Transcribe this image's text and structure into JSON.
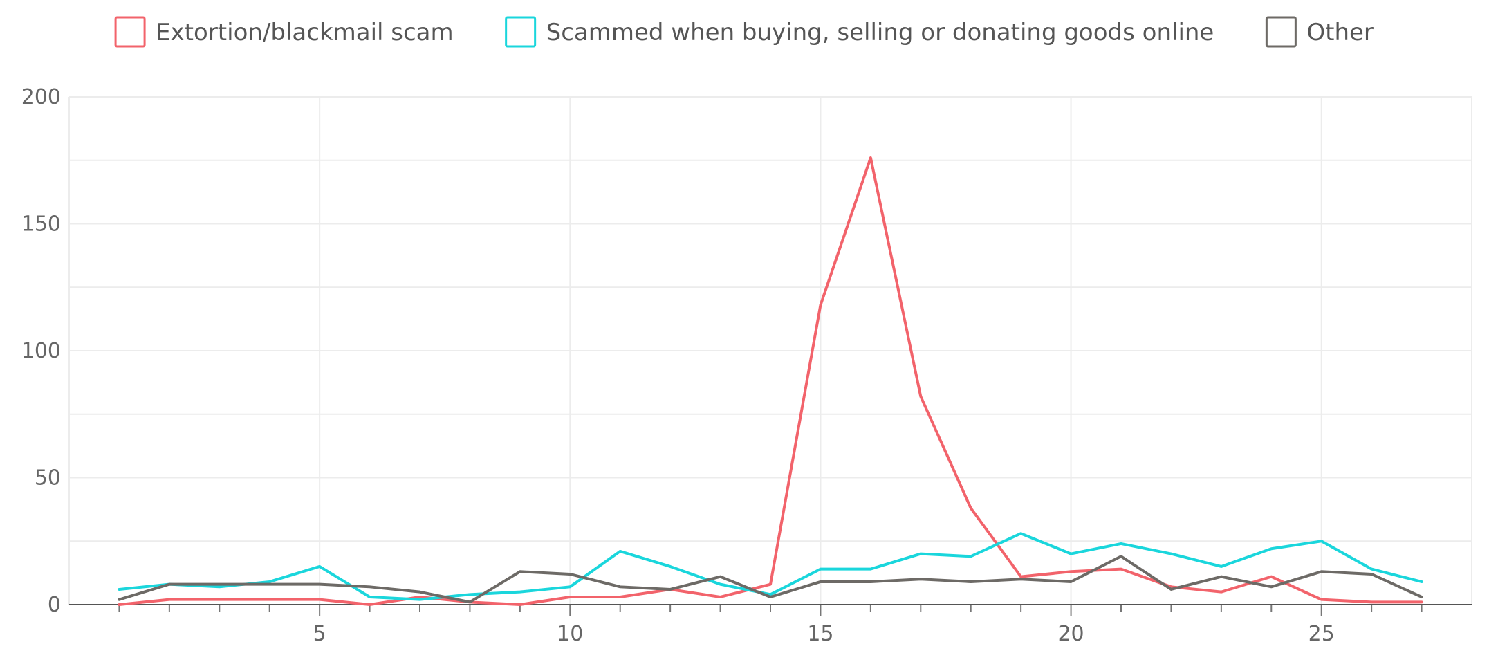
{
  "chart_data": {
    "type": "line",
    "title": "",
    "xlabel": "",
    "ylabel": "",
    "xlim": [
      0,
      28
    ],
    "ylim": [
      0,
      200
    ],
    "x_ticks": [
      5,
      10,
      15,
      20,
      25
    ],
    "y_ticks": [
      0,
      50,
      100,
      150,
      200
    ],
    "grid": true,
    "legend_position": "top",
    "x": [
      1,
      2,
      3,
      4,
      5,
      6,
      7,
      8,
      9,
      10,
      11,
      12,
      13,
      14,
      15,
      16,
      17,
      18,
      19,
      20,
      21,
      22,
      23,
      24,
      25,
      26,
      27
    ],
    "series": [
      {
        "name": "Extortion/blackmail scam",
        "color": "#f2636b",
        "values": [
          0,
          2,
          2,
          2,
          2,
          0,
          3,
          1,
          0,
          3,
          3,
          6,
          3,
          8,
          118,
          176,
          82,
          38,
          11,
          13,
          14,
          7,
          5,
          11,
          2,
          1,
          1
        ]
      },
      {
        "name": "Scammed when buying, selling or donating goods online",
        "color": "#1ad6dc",
        "values": [
          6,
          8,
          7,
          9,
          15,
          3,
          2,
          4,
          5,
          7,
          21,
          15,
          8,
          4,
          14,
          14,
          20,
          19,
          28,
          20,
          24,
          20,
          15,
          22,
          25,
          14,
          9
        ]
      },
      {
        "name": "Other",
        "color": "#6d6a66",
        "values": [
          2,
          8,
          8,
          8,
          8,
          7,
          5,
          1,
          13,
          12,
          7,
          6,
          11,
          3,
          9,
          9,
          10,
          9,
          10,
          9,
          19,
          6,
          11,
          7,
          13,
          12,
          3
        ]
      }
    ]
  }
}
